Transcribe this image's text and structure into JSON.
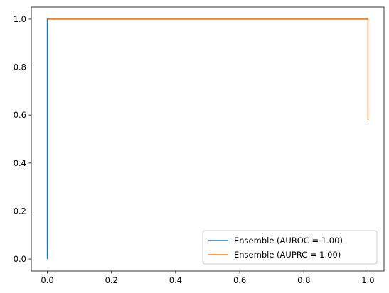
{
  "chart_data": {
    "type": "line",
    "title": "",
    "xlabel": "",
    "ylabel": "",
    "xlim": [
      -0.05,
      1.05
    ],
    "ylim": [
      -0.05,
      1.05
    ],
    "xticks": [
      0.0,
      0.2,
      0.4,
      0.6,
      0.8,
      1.0
    ],
    "yticks": [
      0.0,
      0.2,
      0.4,
      0.6,
      0.8,
      1.0
    ],
    "xtick_labels": [
      "0.0",
      "0.2",
      "0.4",
      "0.6",
      "0.8",
      "1.0"
    ],
    "ytick_labels": [
      "0.0",
      "0.2",
      "0.4",
      "0.6",
      "0.8",
      "1.0"
    ],
    "grid": false,
    "legend_position": "lower-right",
    "series": [
      {
        "name": "Ensemble (AUROC = 1.00)",
        "color": "#1f77b4",
        "x": [
          0.0,
          0.0,
          1.0
        ],
        "y": [
          0.0,
          1.0,
          1.0
        ]
      },
      {
        "name": "Ensemble (AUPRC = 1.00)",
        "color": "#ff7f0e",
        "x": [
          0.0,
          1.0,
          1.0
        ],
        "y": [
          1.0,
          1.0,
          0.58
        ]
      }
    ]
  }
}
